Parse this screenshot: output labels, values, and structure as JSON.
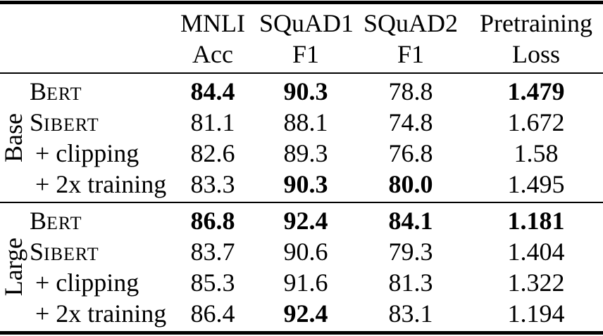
{
  "table": {
    "colors": {
      "text": "#000000",
      "background": "#ffffff",
      "rule": "#000000"
    },
    "header": {
      "cols": [
        {
          "l1": "MNLI",
          "l2": "Acc"
        },
        {
          "l1": "SQuAD1",
          "l2": "F1"
        },
        {
          "l1": "SQuAD2",
          "l2": "F1"
        },
        {
          "l1": "Pretraining",
          "l2": "Loss"
        }
      ]
    },
    "groups": [
      {
        "label": "Base",
        "rows": [
          {
            "cap": "B",
            "sc": "ERT",
            "plain": "",
            "cells": [
              {
                "v": "84.4",
                "b": true
              },
              {
                "v": "90.3",
                "b": true
              },
              {
                "v": "78.8",
                "b": false
              },
              {
                "v": "1.479",
                "b": true
              }
            ]
          },
          {
            "cap": "S",
            "sc": "IBERT",
            "plain": "",
            "cells": [
              {
                "v": "81.1",
                "b": false
              },
              {
                "v": "88.1",
                "b": false
              },
              {
                "v": "74.8",
                "b": false
              },
              {
                "v": "1.672",
                "b": false
              }
            ]
          },
          {
            "cap": "",
            "sc": "",
            "plain": "+ clipping",
            "cells": [
              {
                "v": "82.6",
                "b": false
              },
              {
                "v": "89.3",
                "b": false
              },
              {
                "v": "76.8",
                "b": false
              },
              {
                "v": "1.58",
                "b": false
              }
            ]
          },
          {
            "cap": "",
            "sc": "",
            "plain": "+ 2x training",
            "cells": [
              {
                "v": "83.3",
                "b": false
              },
              {
                "v": "90.3",
                "b": true
              },
              {
                "v": "80.0",
                "b": true
              },
              {
                "v": "1.495",
                "b": false
              }
            ]
          }
        ]
      },
      {
        "label": "Large",
        "rows": [
          {
            "cap": "B",
            "sc": "ERT",
            "plain": "",
            "cells": [
              {
                "v": "86.8",
                "b": true
              },
              {
                "v": "92.4",
                "b": true
              },
              {
                "v": "84.1",
                "b": true
              },
              {
                "v": "1.181",
                "b": true
              }
            ]
          },
          {
            "cap": "S",
            "sc": "IBERT",
            "plain": "",
            "cells": [
              {
                "v": "83.7",
                "b": false
              },
              {
                "v": "90.6",
                "b": false
              },
              {
                "v": "79.3",
                "b": false
              },
              {
                "v": "1.404",
                "b": false
              }
            ]
          },
          {
            "cap": "",
            "sc": "",
            "plain": "+ clipping",
            "cells": [
              {
                "v": "85.3",
                "b": false
              },
              {
                "v": "91.6",
                "b": false
              },
              {
                "v": "81.3",
                "b": false
              },
              {
                "v": "1.322",
                "b": false
              }
            ]
          },
          {
            "cap": "",
            "sc": "",
            "plain": "+ 2x training",
            "cells": [
              {
                "v": "86.4",
                "b": false
              },
              {
                "v": "92.4",
                "b": true
              },
              {
                "v": "83.1",
                "b": false
              },
              {
                "v": "1.194",
                "b": false
              }
            ]
          }
        ]
      }
    ]
  }
}
